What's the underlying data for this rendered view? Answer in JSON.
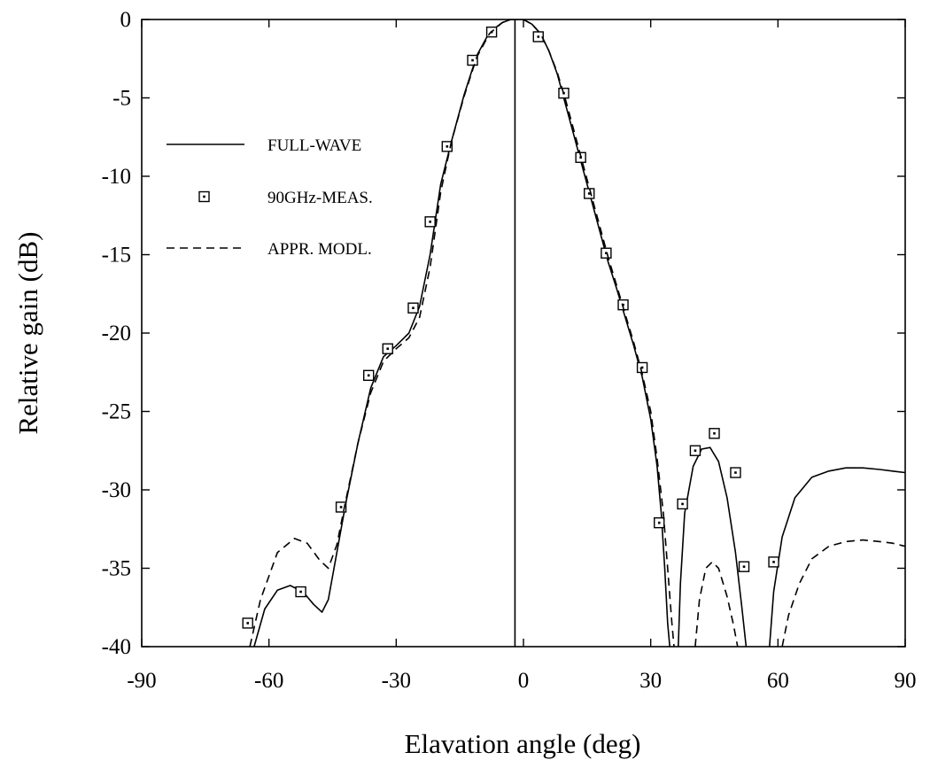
{
  "chart_data": {
    "type": "line",
    "title": "",
    "xlabel": "Elavation angle (deg)",
    "ylabel": "Relative gain (dB)",
    "xlim": [
      -90,
      90
    ],
    "ylim": [
      -40,
      0
    ],
    "x_ticks": [
      -90,
      -60,
      -30,
      0,
      30,
      60,
      90
    ],
    "x_tick_labels": [
      "-90",
      "-60",
      "-30",
      "0",
      "30",
      "60",
      "90"
    ],
    "y_ticks": [
      0,
      -5,
      -10,
      -15,
      -20,
      -25,
      -30,
      -35,
      -40
    ],
    "y_tick_labels": [
      "0",
      "-5",
      "-10",
      "-15",
      "-20",
      "-25",
      "-30",
      "-35",
      "-40"
    ],
    "grid": false,
    "legend_position": "upper-left",
    "reference_line_x": -2,
    "series": [
      {
        "name": "FULL-WAVE",
        "style": "solid",
        "segments": [
          [
            [
              -63.5,
              -40
            ],
            [
              -61,
              -37.6
            ],
            [
              -58,
              -36.4
            ],
            [
              -55,
              -36.1
            ],
            [
              -52,
              -36.5
            ],
            [
              -49.5,
              -37.3
            ],
            [
              -47.5,
              -37.8
            ],
            [
              -46,
              -37
            ],
            [
              -44,
              -34
            ],
            [
              -42,
              -31
            ],
            [
              -39,
              -27
            ],
            [
              -36,
              -23.5
            ],
            [
              -33,
              -21.5
            ],
            [
              -30,
              -20.8
            ],
            [
              -27,
              -20
            ],
            [
              -24.5,
              -18.3
            ],
            [
              -22,
              -15
            ],
            [
              -19.5,
              -10.5
            ],
            [
              -17,
              -7.8
            ],
            [
              -14,
              -4.8
            ],
            [
              -11,
              -2.3
            ],
            [
              -8,
              -0.8
            ],
            [
              -5,
              -0.2
            ],
            [
              -3,
              0
            ],
            [
              0,
              0
            ],
            [
              2,
              -0.3
            ],
            [
              4,
              -0.9
            ],
            [
              6,
              -2
            ],
            [
              8,
              -3.5
            ],
            [
              10,
              -5.5
            ],
            [
              12,
              -7.5
            ],
            [
              14,
              -9.5
            ],
            [
              16,
              -11.5
            ],
            [
              18,
              -13.5
            ],
            [
              20,
              -15.5
            ],
            [
              22,
              -17.2
            ],
            [
              24,
              -19
            ],
            [
              26,
              -20.8
            ],
            [
              28,
              -22.8
            ],
            [
              30,
              -25.5
            ],
            [
              31.5,
              -28.5
            ],
            [
              32.5,
              -31.5
            ],
            [
              33.3,
              -35
            ],
            [
              34,
              -38.5
            ],
            [
              34.5,
              -40
            ]
          ],
          [
            [
              36.5,
              -40
            ],
            [
              37,
              -36
            ],
            [
              38,
              -31.5
            ],
            [
              40,
              -28.5
            ],
            [
              42,
              -27.4
            ],
            [
              44,
              -27.3
            ],
            [
              46,
              -28.2
            ],
            [
              48,
              -30.5
            ],
            [
              50,
              -34
            ],
            [
              51.5,
              -37.5
            ],
            [
              52.5,
              -40
            ]
          ],
          [
            [
              58,
              -40
            ],
            [
              59,
              -36.5
            ],
            [
              61,
              -33
            ],
            [
              64,
              -30.5
            ],
            [
              68,
              -29.2
            ],
            [
              72,
              -28.8
            ],
            [
              76,
              -28.6
            ],
            [
              80,
              -28.6
            ],
            [
              84,
              -28.7
            ],
            [
              87,
              -28.8
            ],
            [
              90,
              -28.9
            ]
          ]
        ]
      },
      {
        "name": "90GHz-MEAS.",
        "style": "markers",
        "points": [
          [
            -65,
            -38.5
          ],
          [
            -52.5,
            -36.5
          ],
          [
            -43,
            -31.1
          ],
          [
            -36.5,
            -22.7
          ],
          [
            -32,
            -21
          ],
          [
            -26,
            -18.4
          ],
          [
            -22,
            -12.9
          ],
          [
            -18,
            -8.1
          ],
          [
            -12,
            -2.6
          ],
          [
            -7.5,
            -0.8
          ],
          [
            3.5,
            -1.1
          ],
          [
            9.5,
            -4.7
          ],
          [
            13.5,
            -8.8
          ],
          [
            15.5,
            -11.1
          ],
          [
            19.5,
            -14.9
          ],
          [
            23.5,
            -18.2
          ],
          [
            28,
            -22.2
          ],
          [
            32,
            -32.1
          ],
          [
            37.5,
            -30.9
          ],
          [
            40.5,
            -27.5
          ],
          [
            45,
            -26.4
          ],
          [
            50,
            -28.9
          ],
          [
            52,
            -34.9
          ],
          [
            59,
            -34.6
          ]
        ]
      },
      {
        "name": "APPR. MODL.",
        "style": "dashed",
        "segments": [
          [
            [
              -64.5,
              -40
            ],
            [
              -62,
              -37
            ],
            [
              -58,
              -34
            ],
            [
              -54,
              -33.1
            ],
            [
              -51,
              -33.4
            ],
            [
              -48,
              -34.5
            ],
            [
              -46,
              -35
            ],
            [
              -44,
              -33.5
            ],
            [
              -42,
              -30.8
            ],
            [
              -39,
              -27
            ],
            [
              -36,
              -23.8
            ],
            [
              -33,
              -21.8
            ],
            [
              -30,
              -21
            ],
            [
              -27,
              -20.3
            ],
            [
              -24.5,
              -19
            ],
            [
              -22,
              -15.8
            ],
            [
              -19.5,
              -11
            ],
            [
              -17,
              -7.8
            ],
            [
              -14,
              -4.9
            ],
            [
              -11,
              -2.4
            ],
            [
              -8,
              -0.9
            ],
            [
              -5,
              -0.2
            ],
            [
              -3,
              0
            ],
            [
              0,
              0
            ],
            [
              2,
              -0.3
            ],
            [
              4,
              -0.9
            ],
            [
              6,
              -2
            ],
            [
              8,
              -3.4
            ],
            [
              10,
              -5.2
            ],
            [
              12,
              -7.2
            ],
            [
              14,
              -9.2
            ],
            [
              16,
              -11.2
            ],
            [
              18,
              -13.2
            ],
            [
              20,
              -15.2
            ],
            [
              22,
              -17
            ],
            [
              24,
              -18.8
            ],
            [
              26,
              -20.6
            ],
            [
              28,
              -22.6
            ],
            [
              30,
              -25
            ],
            [
              31.5,
              -28
            ],
            [
              33,
              -31.5
            ],
            [
              34,
              -35
            ],
            [
              35,
              -38.5
            ],
            [
              35.5,
              -40
            ]
          ],
          [
            [
              40.5,
              -40
            ],
            [
              41.5,
              -37
            ],
            [
              43,
              -35
            ],
            [
              44.5,
              -34.6
            ],
            [
              46,
              -35
            ],
            [
              48,
              -36.8
            ],
            [
              49.5,
              -38.6
            ],
            [
              50.5,
              -40
            ]
          ],
          [
            [
              61,
              -40
            ],
            [
              62.5,
              -38
            ],
            [
              65,
              -36
            ],
            [
              68,
              -34.4
            ],
            [
              72,
              -33.6
            ],
            [
              76,
              -33.3
            ],
            [
              80,
              -33.2
            ],
            [
              84,
              -33.3
            ],
            [
              87,
              -33.4
            ],
            [
              90,
              -33.6
            ]
          ]
        ]
      }
    ]
  }
}
